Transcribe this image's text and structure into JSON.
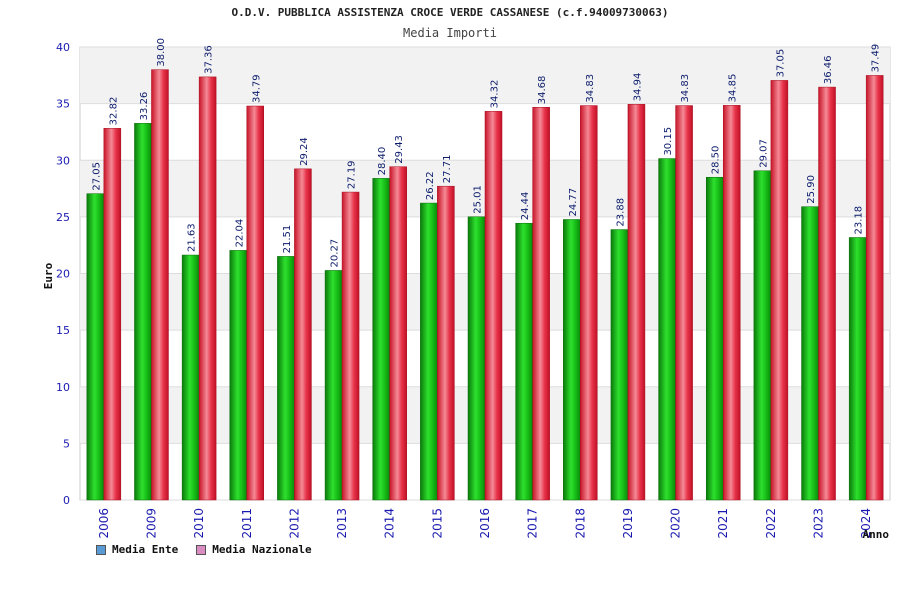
{
  "chart_data": {
    "type": "bar",
    "title": "O.D.V. PUBBLICA ASSISTENZA CROCE VERDE CASSANESE (c.f.94009730063)",
    "subtitle": "Media Importi",
    "xlabel": "Anno",
    "ylabel": "Euro",
    "ylim": [
      0,
      40
    ],
    "yticks": [
      0,
      5,
      10,
      15,
      20,
      25,
      30,
      35,
      40
    ],
    "categories": [
      "2006",
      "2009",
      "2010",
      "2011",
      "2012",
      "2013",
      "2014",
      "2015",
      "2016",
      "2017",
      "2018",
      "2019",
      "2020",
      "2021",
      "2022",
      "2023",
      "2024"
    ],
    "series": [
      {
        "name": "Media Ente",
        "values": [
          27.05,
          33.26,
          21.63,
          22.04,
          21.51,
          20.27,
          28.4,
          26.22,
          25.01,
          24.44,
          24.77,
          23.88,
          30.15,
          28.5,
          29.07,
          25.9,
          23.18
        ],
        "labels": [
          "27.05",
          "33.26",
          "21.63",
          "22.04",
          "21.51",
          "20.27",
          "28.40",
          "26.22",
          "25.01",
          "24.44",
          "24.77",
          "23.88",
          "30.15",
          "28.50",
          "29.07",
          "25.90",
          "23.18"
        ]
      },
      {
        "name": "Media Nazionale",
        "values": [
          32.82,
          38.0,
          37.36,
          34.79,
          29.24,
          27.19,
          29.43,
          27.71,
          34.32,
          34.68,
          34.83,
          34.94,
          34.83,
          34.85,
          37.05,
          36.46,
          37.49
        ],
        "labels": [
          "32.82",
          "38.00",
          "37.36",
          "34.79",
          "29.24",
          "27.19",
          "29.43",
          "27.71",
          "34.32",
          "34.68",
          "34.83",
          "34.94",
          "34.83",
          "34.85",
          "37.05",
          "36.46",
          "37.49"
        ]
      }
    ],
    "legend": [
      {
        "label": "Media Ente",
        "color": "#5b9bd5"
      },
      {
        "label": "Media Nazionale",
        "color": "#d98cc0"
      }
    ],
    "colors": {
      "ente": "#18c018",
      "nazionale": "#e8283c",
      "axis_text": "#1a1ab0"
    }
  }
}
